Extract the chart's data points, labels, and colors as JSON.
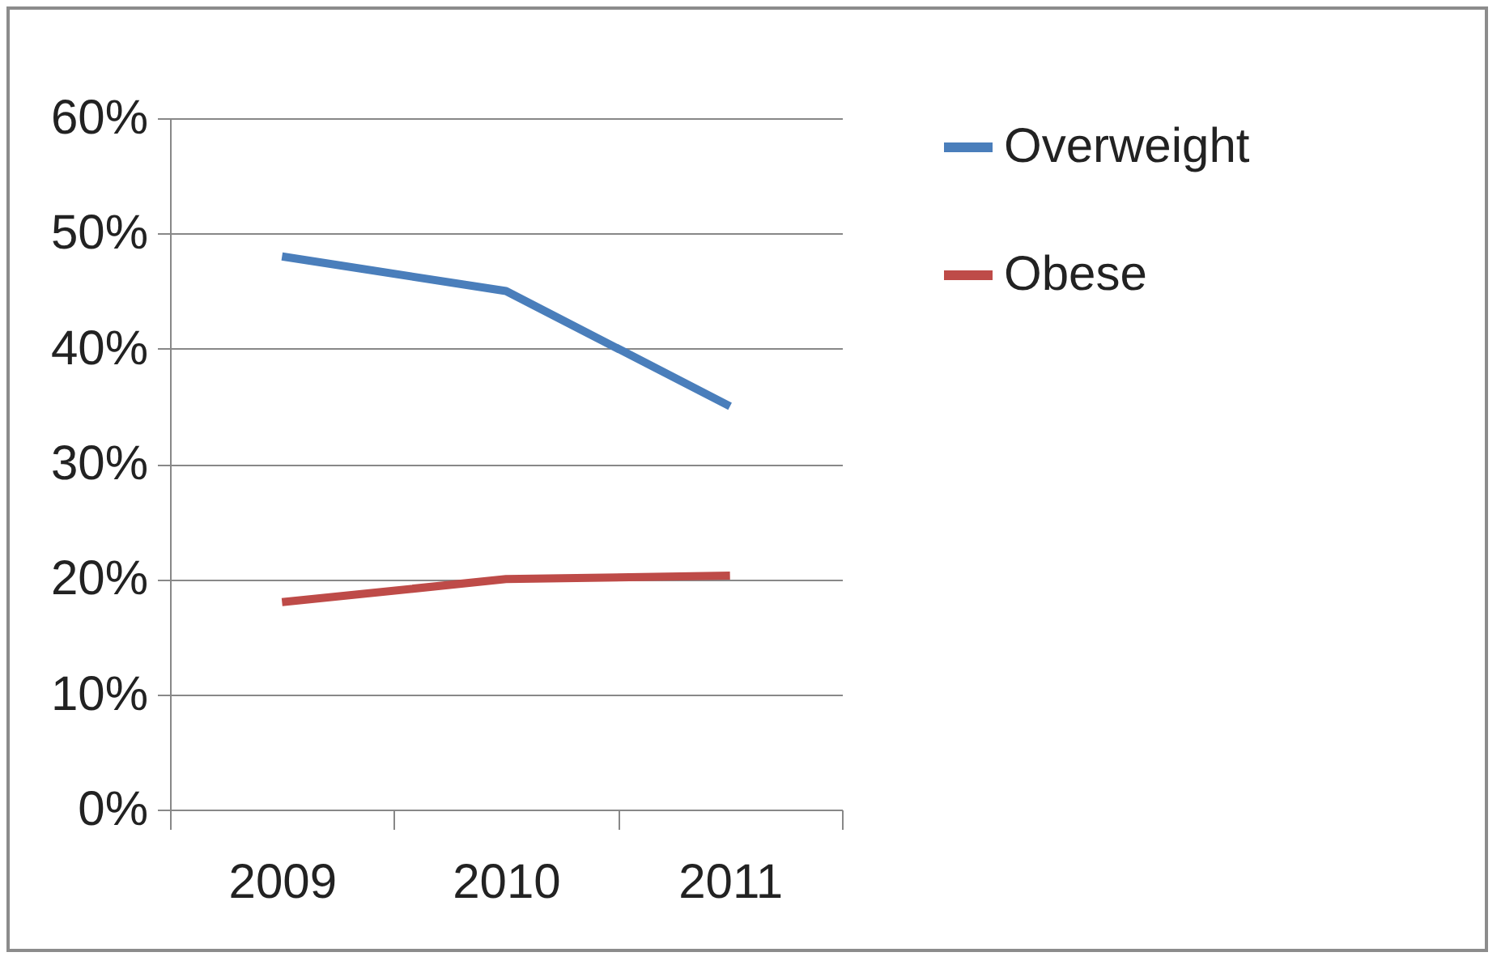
{
  "chart_data": {
    "type": "line",
    "categories": [
      "2009",
      "2010",
      "2011"
    ],
    "series": [
      {
        "name": "Overweight",
        "color": "#4a7ebb",
        "values": [
          48,
          45,
          35
        ]
      },
      {
        "name": "Obese",
        "color": "#be4b48",
        "values": [
          18,
          20,
          20.3
        ]
      }
    ],
    "ylim": [
      0,
      60
    ],
    "yticks": [
      {
        "value": 0,
        "label": "0%"
      },
      {
        "value": 10,
        "label": "10%"
      },
      {
        "value": 20,
        "label": "20%"
      },
      {
        "value": 30,
        "label": "30%"
      },
      {
        "value": 40,
        "label": "40%"
      },
      {
        "value": 50,
        "label": "50%"
      },
      {
        "value": 60,
        "label": "60%"
      }
    ],
    "grid": "y",
    "legend": "right",
    "marker": "none",
    "line_style": "solid"
  }
}
